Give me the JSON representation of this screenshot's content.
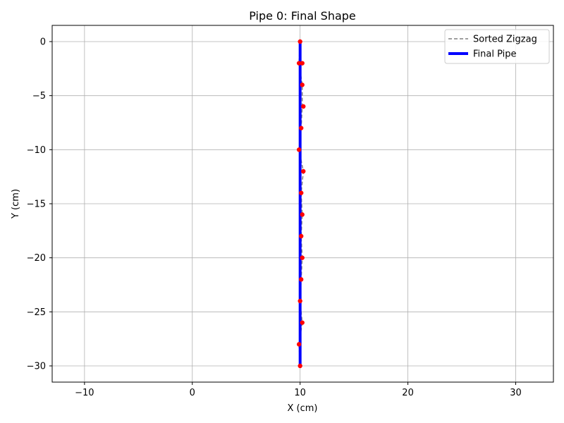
{
  "chart_data": {
    "type": "line",
    "title": "Pipe 0: Final Shape",
    "xlabel": "X (cm)",
    "ylabel": "Y (cm)",
    "xlim": [
      -13,
      33.5
    ],
    "ylim": [
      -31.5,
      1.5
    ],
    "xticks": [
      -10,
      0,
      10,
      20,
      30
    ],
    "yticks": [
      0,
      -5,
      -10,
      -15,
      -20,
      -25,
      -30
    ],
    "xtick_labels": [
      "−10",
      "0",
      "10",
      "20",
      "30"
    ],
    "ytick_labels": [
      "0",
      "−5",
      "−10",
      "−15",
      "−20",
      "−25",
      "−30"
    ],
    "grid": true,
    "legend_position": "top-right",
    "legend": [
      {
        "label": "Sorted Zigzag",
        "style": "dashed",
        "color": "#808080"
      },
      {
        "label": "Final Pipe",
        "style": "solid-thick",
        "color": "#0000ff"
      }
    ],
    "series": [
      {
        "name": "Sorted Zigzag",
        "style": "dashed",
        "color": "#808080",
        "x": [
          10.0,
          9.9,
          10.2,
          10.2,
          10.1,
          9.9,
          10.3,
          10.1,
          10.2,
          10.1,
          10.2,
          10.1,
          10.0,
          10.2,
          9.9,
          10.0
        ],
        "y": [
          0,
          -2,
          -4,
          -6,
          -8,
          -10,
          -12,
          -14,
          -16,
          -18,
          -20,
          -22,
          -24,
          -26,
          -28,
          -30
        ]
      },
      {
        "name": "Final Pipe",
        "style": "solid",
        "color": "#0000ff",
        "x": [
          10.0,
          10.0
        ],
        "y": [
          0,
          -30
        ]
      }
    ],
    "points": {
      "color": "#ff0000",
      "x": [
        10.0,
        9.9,
        10.2,
        10.2,
        10.3,
        10.1,
        9.9,
        10.3,
        10.1,
        10.2,
        10.1,
        10.2,
        10.1,
        10.0,
        10.2,
        9.9,
        10.0
      ],
      "y": [
        0,
        -2,
        -2,
        -4,
        -6,
        -8,
        -10,
        -12,
        -14,
        -16,
        -18,
        -20,
        -22,
        -24,
        -26,
        -28,
        -30
      ]
    }
  }
}
